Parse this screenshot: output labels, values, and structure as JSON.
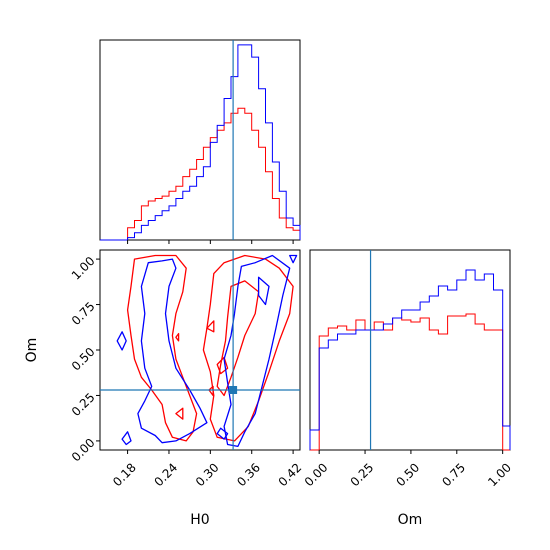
{
  "chart_data": {
    "type": "corner",
    "parameters": [
      "H0",
      "Om"
    ],
    "truth": {
      "H0": 0.333,
      "Om": 0.28
    },
    "truth_color": "#1f77b4",
    "series_colors": {
      "blue": "#0000ff",
      "red": "#ff0000"
    },
    "panels": {
      "hist_h0": {
        "xlim": [
          0.14,
          0.43
        ],
        "x_ticks": [
          0.18,
          0.24,
          0.3,
          0.36,
          0.42
        ],
        "bin_edges": [
          0.14,
          0.15,
          0.16,
          0.17,
          0.18,
          0.19,
          0.2,
          0.21,
          0.22,
          0.23,
          0.24,
          0.25,
          0.26,
          0.27,
          0.28,
          0.29,
          0.3,
          0.31,
          0.32,
          0.33,
          0.34,
          0.35,
          0.36,
          0.37,
          0.38,
          0.39,
          0.4,
          0.41,
          0.42,
          0.43
        ],
        "blue_counts": [
          0,
          0,
          0,
          0,
          1,
          3,
          6,
          8,
          10,
          12,
          14,
          17,
          20,
          22,
          26,
          30,
          40,
          47,
          58,
          67,
          80,
          80,
          75,
          62,
          48,
          32,
          20,
          9,
          6
        ],
        "red_counts": [
          0,
          0,
          0,
          0,
          5,
          8,
          14,
          16,
          17,
          18,
          20,
          22,
          26,
          29,
          33,
          38,
          42,
          45,
          48,
          52,
          54,
          52,
          45,
          38,
          28,
          17,
          9,
          5,
          4
        ],
        "ymax": 82
      },
      "hist_om": {
        "xlim": [
          -0.05,
          1.04
        ],
        "x_ticks": [
          0.0,
          0.25,
          0.5,
          0.75,
          1.0
        ],
        "x_tick_labels": [
          "0.00",
          "0.25",
          "0.50",
          "0.75",
          "1.00"
        ],
        "bin_edges": [
          -0.05,
          0.0,
          0.05,
          0.1,
          0.15,
          0.2,
          0.25,
          0.3,
          0.35,
          0.4,
          0.45,
          0.5,
          0.55,
          0.6,
          0.65,
          0.7,
          0.75,
          0.8,
          0.85,
          0.9,
          0.95,
          1.0,
          1.04
        ],
        "blue_counts": [
          10,
          51,
          55,
          58,
          58,
          60,
          60,
          60,
          63,
          66,
          70,
          70,
          74,
          77,
          82,
          80,
          85,
          90,
          85,
          88,
          80,
          12
        ],
        "red_counts": [
          0,
          57,
          61,
          62,
          60,
          65,
          60,
          64,
          60,
          66,
          65,
          64,
          66,
          60,
          58,
          67,
          67,
          68,
          63,
          60,
          60,
          0
        ],
        "ymax": 100
      },
      "joint": {
        "xlim": [
          0.14,
          0.43
        ],
        "ylim": [
          -0.05,
          1.05
        ],
        "x_ticks": [
          0.18,
          0.24,
          0.3,
          0.36,
          0.42
        ],
        "y_ticks": [
          0.0,
          0.25,
          0.5,
          0.75,
          1.0
        ],
        "y_tick_labels": [
          "0.00",
          "0.25",
          "0.50",
          "0.75",
          "1.00"
        ],
        "blue_contours": [
          [
            [
              0.21,
              0.98
            ],
            [
              0.23,
              0.99
            ],
            [
              0.245,
              1.0
            ],
            [
              0.25,
              0.95
            ],
            [
              0.24,
              0.85
            ],
            [
              0.235,
              0.7
            ],
            [
              0.24,
              0.55
            ],
            [
              0.25,
              0.4
            ],
            [
              0.27,
              0.28
            ],
            [
              0.285,
              0.18
            ],
            [
              0.295,
              0.1
            ],
            [
              0.27,
              0.04
            ],
            [
              0.25,
              0.0
            ],
            [
              0.23,
              -0.01
            ],
            [
              0.22,
              0.03
            ],
            [
              0.2,
              0.07
            ],
            [
              0.195,
              0.15
            ],
            [
              0.205,
              0.22
            ],
            [
              0.215,
              0.3
            ],
            [
              0.205,
              0.4
            ],
            [
              0.2,
              0.55
            ],
            [
              0.205,
              0.7
            ],
            [
              0.2,
              0.85
            ],
            [
              0.21,
              0.98
            ]
          ],
          [
            [
              0.345,
              0.96
            ],
            [
              0.365,
              0.98
            ],
            [
              0.39,
              1.02
            ],
            [
              0.415,
              0.95
            ],
            [
              0.405,
              0.8
            ],
            [
              0.395,
              0.62
            ],
            [
              0.385,
              0.45
            ],
            [
              0.375,
              0.3
            ],
            [
              0.365,
              0.15
            ],
            [
              0.35,
              0.05
            ],
            [
              0.34,
              -0.03
            ],
            [
              0.325,
              -0.02
            ],
            [
              0.32,
              0.08
            ],
            [
              0.33,
              0.2
            ],
            [
              0.325,
              0.32
            ],
            [
              0.32,
              0.45
            ],
            [
              0.33,
              0.58
            ],
            [
              0.335,
              0.7
            ],
            [
              0.34,
              0.85
            ],
            [
              0.345,
              0.96
            ]
          ],
          [
            [
              0.37,
              0.9
            ],
            [
              0.385,
              0.85
            ],
            [
              0.38,
              0.75
            ],
            [
              0.37,
              0.8
            ],
            [
              0.37,
              0.9
            ]
          ],
          [
            [
              0.315,
              0.07
            ],
            [
              0.325,
              0.04
            ],
            [
              0.32,
              0.01
            ],
            [
              0.31,
              0.04
            ],
            [
              0.315,
              0.07
            ]
          ],
          [
            [
              0.165,
              0.55
            ],
            [
              0.172,
              0.6
            ],
            [
              0.178,
              0.55
            ],
            [
              0.172,
              0.5
            ],
            [
              0.165,
              0.55
            ]
          ],
          [
            [
              0.172,
              0.01
            ],
            [
              0.18,
              0.05
            ],
            [
              0.185,
              0.0
            ],
            [
              0.178,
              -0.02
            ],
            [
              0.172,
              0.01
            ]
          ],
          [
            [
              0.415,
              1.02
            ],
            [
              0.42,
              0.98
            ],
            [
              0.425,
              1.02
            ],
            [
              0.415,
              1.02
            ]
          ]
        ],
        "red_contours": [
          [
            [
              0.19,
              1.0
            ],
            [
              0.22,
              1.02
            ],
            [
              0.25,
              1.02
            ],
            [
              0.265,
              0.95
            ],
            [
              0.26,
              0.82
            ],
            [
              0.25,
              0.7
            ],
            [
              0.245,
              0.58
            ],
            [
              0.25,
              0.45
            ],
            [
              0.26,
              0.35
            ],
            [
              0.27,
              0.25
            ],
            [
              0.28,
              0.15
            ],
            [
              0.275,
              0.05
            ],
            [
              0.265,
              0.0
            ],
            [
              0.245,
              0.02
            ],
            [
              0.235,
              0.1
            ],
            [
              0.23,
              0.2
            ],
            [
              0.215,
              0.28
            ],
            [
              0.2,
              0.35
            ],
            [
              0.19,
              0.45
            ],
            [
              0.185,
              0.58
            ],
            [
              0.18,
              0.72
            ],
            [
              0.185,
              0.85
            ],
            [
              0.19,
              1.0
            ]
          ],
          [
            [
              0.305,
              0.92
            ],
            [
              0.32,
              0.98
            ],
            [
              0.35,
              1.02
            ],
            [
              0.38,
              1.0
            ],
            [
              0.4,
              0.95
            ],
            [
              0.42,
              0.85
            ],
            [
              0.415,
              0.7
            ],
            [
              0.4,
              0.55
            ],
            [
              0.385,
              0.38
            ],
            [
              0.37,
              0.22
            ],
            [
              0.355,
              0.08
            ],
            [
              0.335,
              0.0
            ],
            [
              0.31,
              0.02
            ],
            [
              0.3,
              0.12
            ],
            [
              0.305,
              0.25
            ],
            [
              0.3,
              0.38
            ],
            [
              0.29,
              0.5
            ],
            [
              0.295,
              0.62
            ],
            [
              0.3,
              0.75
            ],
            [
              0.305,
              0.92
            ]
          ],
          [
            [
              0.33,
              0.85
            ],
            [
              0.35,
              0.88
            ],
            [
              0.37,
              0.82
            ],
            [
              0.365,
              0.7
            ],
            [
              0.35,
              0.58
            ],
            [
              0.34,
              0.46
            ],
            [
              0.33,
              0.35
            ],
            [
              0.32,
              0.25
            ],
            [
              0.31,
              0.3
            ],
            [
              0.315,
              0.42
            ],
            [
              0.322,
              0.55
            ],
            [
              0.325,
              0.68
            ],
            [
              0.33,
              0.85
            ]
          ],
          [
            [
              0.31,
              0.42
            ],
            [
              0.32,
              0.46
            ],
            [
              0.325,
              0.4
            ],
            [
              0.315,
              0.37
            ],
            [
              0.31,
              0.42
            ]
          ],
          [
            [
              0.295,
              0.62
            ],
            [
              0.305,
              0.66
            ],
            [
              0.305,
              0.6
            ],
            [
              0.295,
              0.62
            ]
          ],
          [
            [
              0.298,
              0.28
            ],
            [
              0.304,
              0.3
            ],
            [
              0.304,
              0.25
            ],
            [
              0.298,
              0.28
            ]
          ],
          [
            [
              0.25,
              0.15
            ],
            [
              0.26,
              0.18
            ],
            [
              0.26,
              0.12
            ],
            [
              0.25,
              0.15
            ]
          ],
          [
            [
              0.25,
              0.57
            ],
            [
              0.254,
              0.59
            ],
            [
              0.254,
              0.55
            ],
            [
              0.25,
              0.57
            ]
          ]
        ]
      }
    },
    "x_labels": {
      "hist_om": "Om",
      "joint": "H0"
    },
    "y_labels": {
      "joint": "Om"
    }
  }
}
